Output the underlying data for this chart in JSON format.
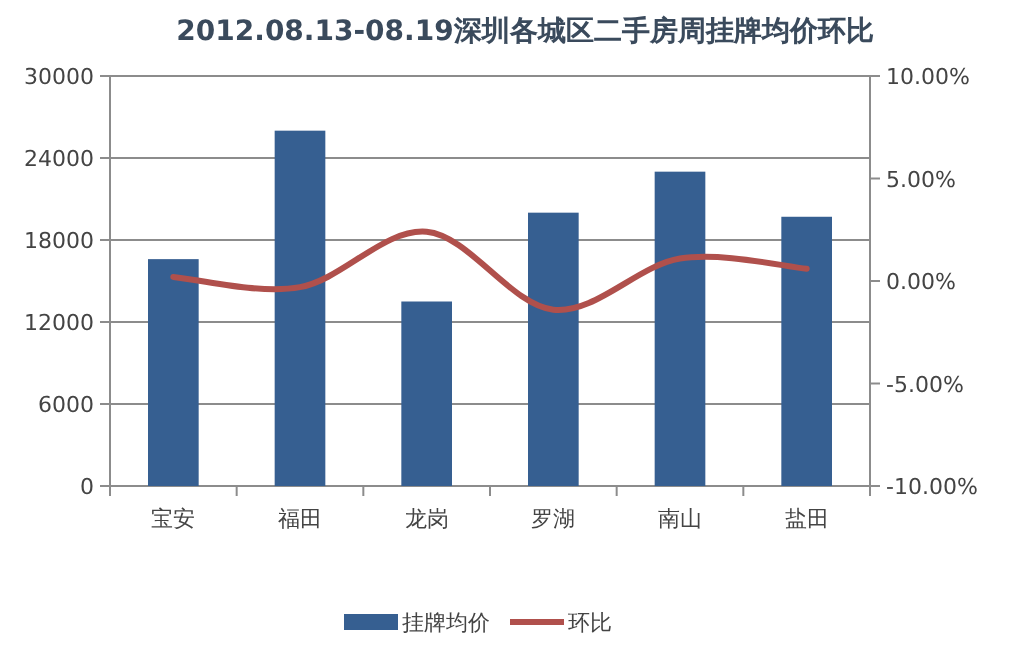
{
  "chart_data": {
    "type": "bar",
    "title": "2012.08.13-08.19深圳各城区二手房周挂牌均价环比",
    "categories": [
      "宝安",
      "福田",
      "龙岗",
      "罗湖",
      "南山",
      "盐田"
    ],
    "series": [
      {
        "name": "挂牌均价",
        "color": "#365f91",
        "values": [
          16600,
          26000,
          13500,
          20000,
          23000,
          19700
        ]
      },
      {
        "name": "环比",
        "type": "line",
        "axis": "y2",
        "color": "#b0504c",
        "values": [
          0.2,
          -0.3,
          2.4,
          -1.4,
          1.1,
          0.6
        ]
      }
    ],
    "ylim": [
      0,
      30000
    ],
    "yticks": [
      0,
      6000,
      12000,
      18000,
      24000,
      30000
    ],
    "y2lim": [
      -10,
      10
    ],
    "y2ticks": [
      {
        "value": -10,
        "label": "-10.00%"
      },
      {
        "value": -5,
        "label": "-5.00%"
      },
      {
        "value": 0,
        "label": "0.00%"
      },
      {
        "value": 5,
        "label": "5.00%"
      },
      {
        "value": 10,
        "label": "10.00%"
      }
    ],
    "grid": "y",
    "legend": "bottom",
    "marker": "none",
    "line_style": "solid"
  }
}
